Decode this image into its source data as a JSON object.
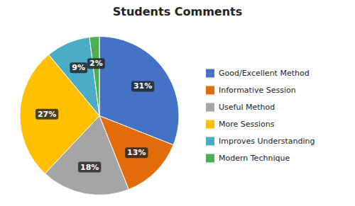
{
  "chart_data": {
    "type": "pie",
    "title": "Students Comments",
    "categories": [
      "Good/Excellent Method",
      "Informative Session",
      "Useful Method",
      "More Sessions",
      "Improves Understanding",
      "Modern Technique"
    ],
    "values": [
      31,
      13,
      18,
      27,
      9,
      2
    ],
    "value_labels": [
      "31%",
      "13%",
      "18%",
      "27%",
      "9%",
      "2%"
    ],
    "colors": [
      "#4472C4",
      "#E36C0A",
      "#A5A5A5",
      "#FFC000",
      "#4BACC6",
      "#4CAF50"
    ],
    "data_labels": true,
    "legend": "right"
  }
}
